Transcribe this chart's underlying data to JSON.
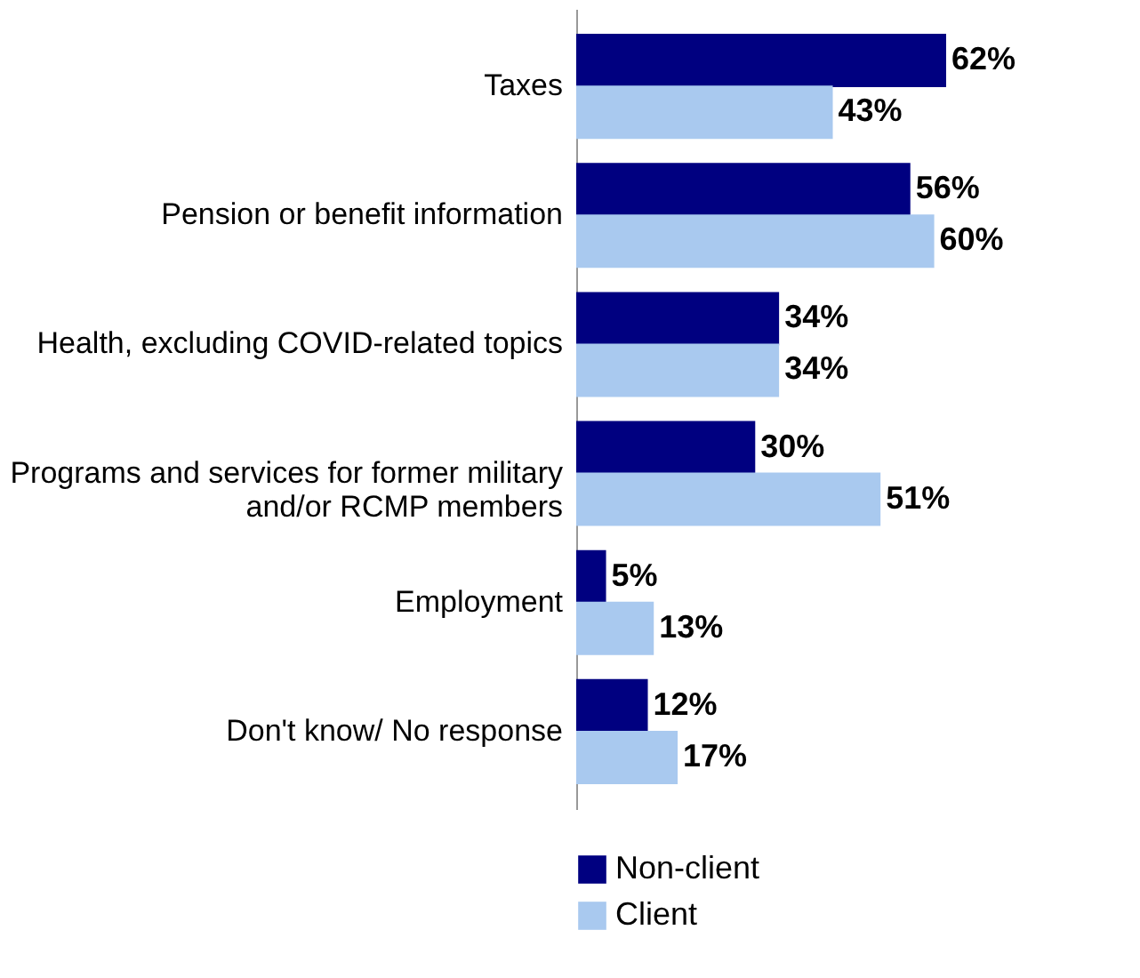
{
  "chart_data": {
    "type": "bar",
    "orientation": "horizontal",
    "categories": [
      "Taxes",
      "Pension or benefit information",
      "Health, excluding COVID-related topics",
      "Programs and services for former military and/or RCMP members",
      "Employment",
      "Don't know/ No response"
    ],
    "series": [
      {
        "name": "Non-client",
        "color": "#000080",
        "values": [
          62,
          56,
          34,
          30,
          5,
          12
        ],
        "value_labels": [
          "62%",
          "56%",
          "34%",
          "30%",
          "5%",
          "12%"
        ]
      },
      {
        "name": "Client",
        "color": "#a9c9ef",
        "values": [
          43,
          60,
          34,
          51,
          13,
          17
        ],
        "value_labels": [
          "43%",
          "60%",
          "34%",
          "51%",
          "13%",
          "17%"
        ]
      }
    ],
    "legend": "bottom",
    "grid": false
  }
}
